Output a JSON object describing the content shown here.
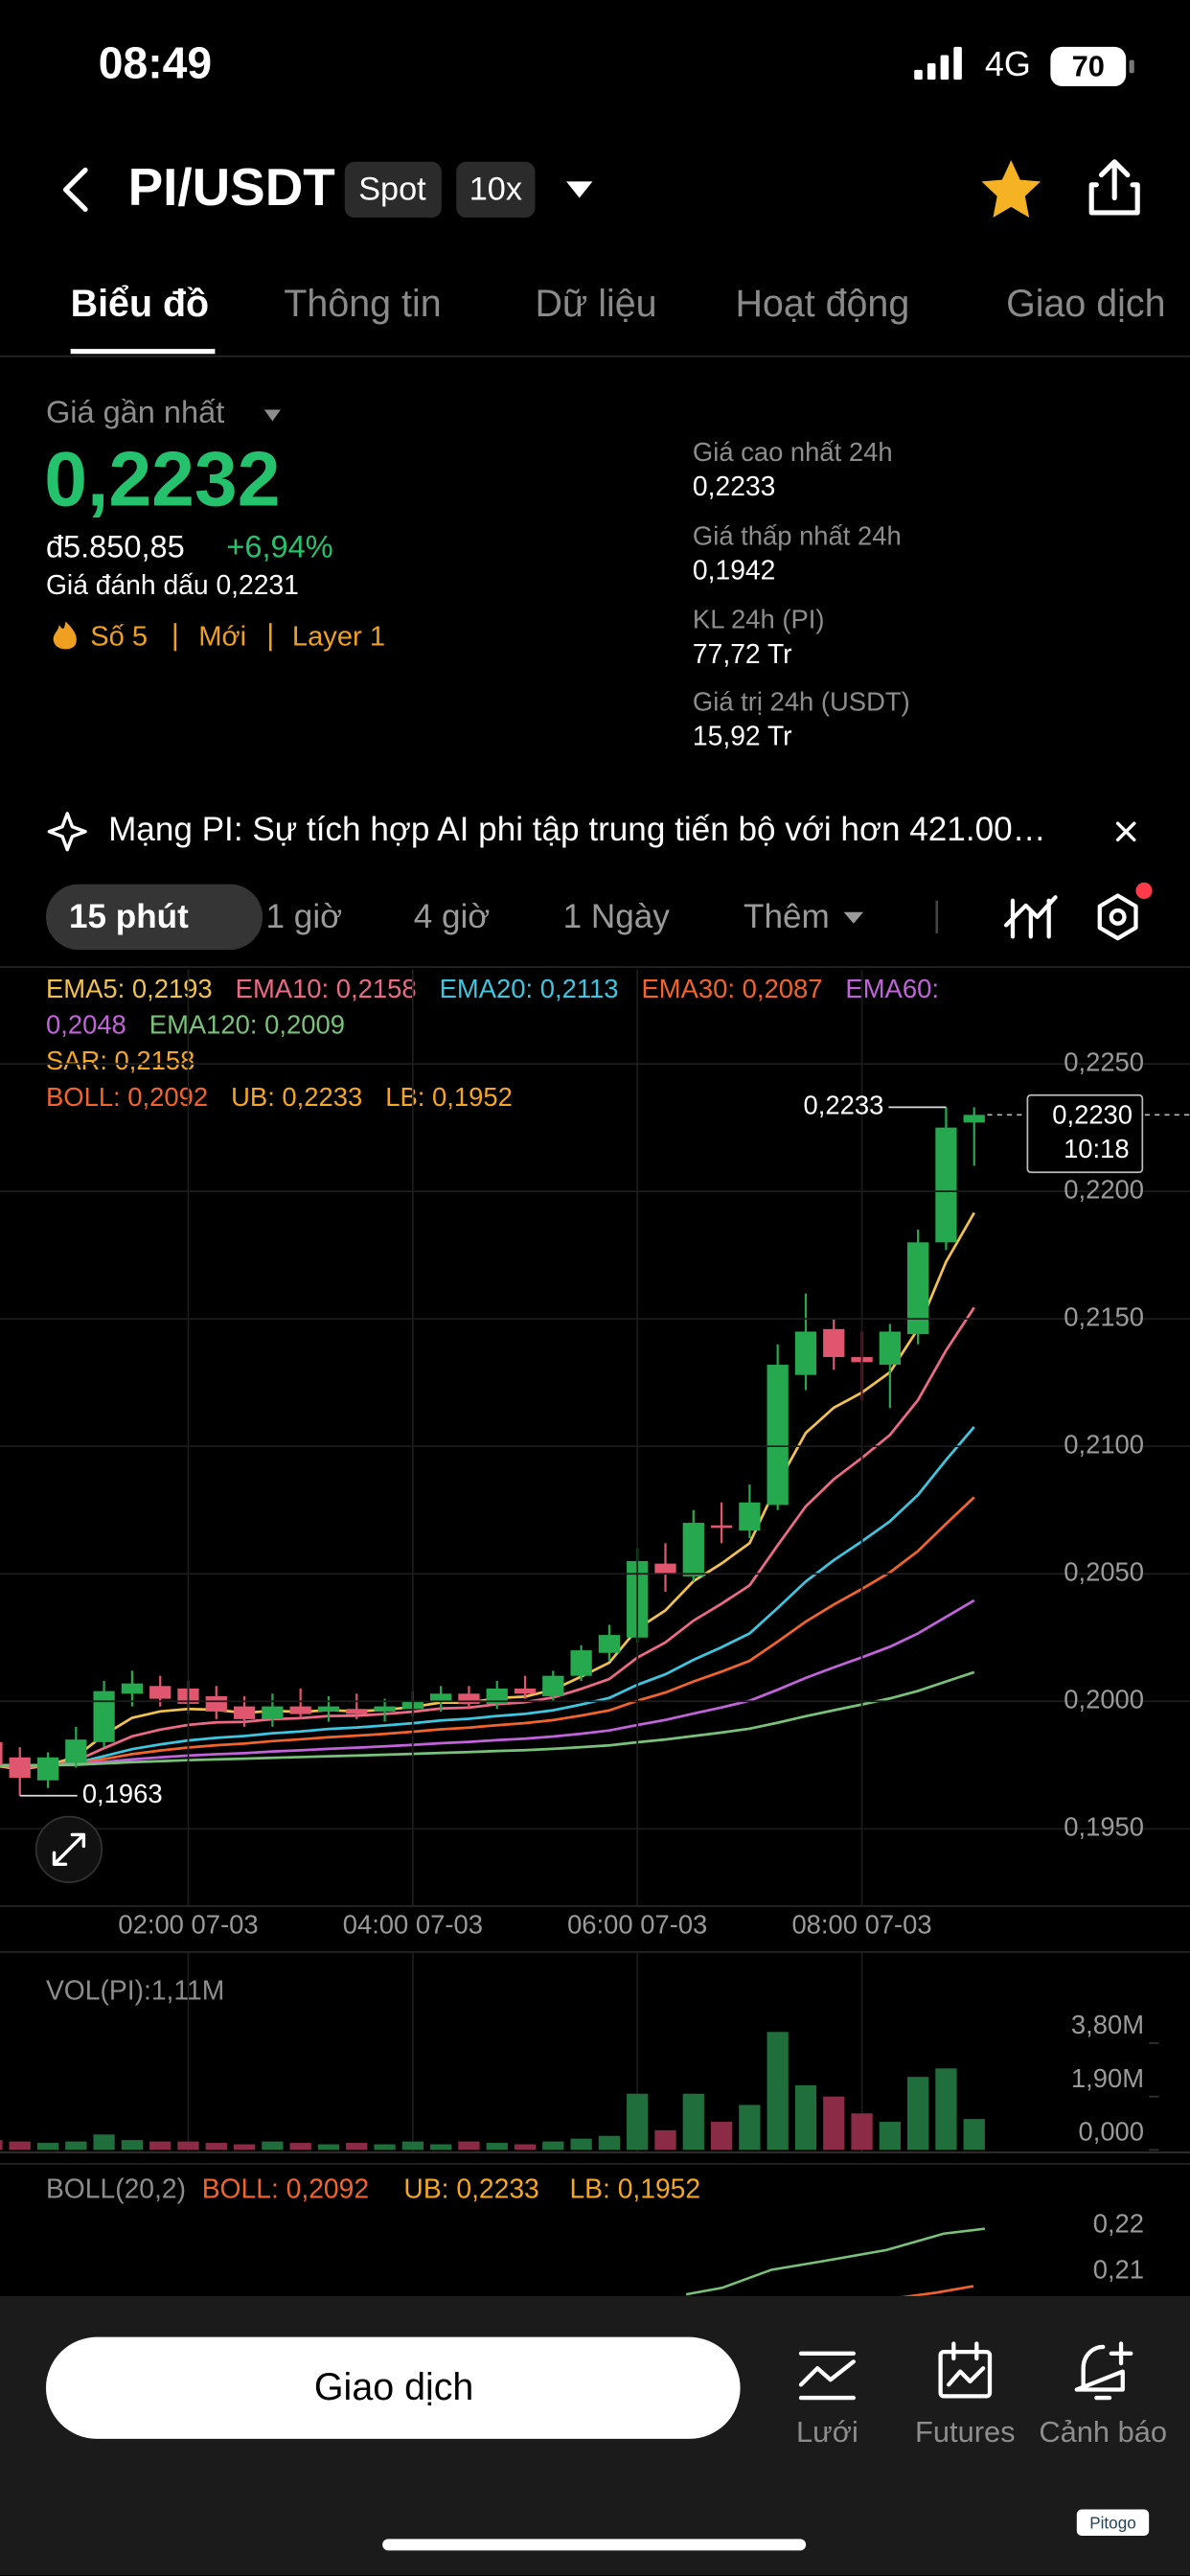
{
  "status_bar": {
    "time": "08:49",
    "network": "4G",
    "battery": "70"
  },
  "header": {
    "pair": "PI/USDT",
    "badges": [
      "Spot",
      "10x"
    ]
  },
  "tabs": [
    "Biểu đồ",
    "Thông tin",
    "Dữ liệu",
    "Hoạt động",
    "Giao dịch"
  ],
  "summary": {
    "label": "Giá gần nhất",
    "price": "0,2232",
    "fiat": "đ5.850,85",
    "change": "+6,94%",
    "mark": "Giá đánh dấu 0,2231",
    "tags": [
      "Số 5",
      "Mới",
      "Layer 1"
    ],
    "stats": [
      {
        "label": "Giá cao nhất 24h",
        "value": "0,2233"
      },
      {
        "label": "Giá thấp nhất 24h",
        "value": "0,1942"
      },
      {
        "label": "KL 24h (PI)",
        "value": "77,72 Tr"
      },
      {
        "label": "Giá trị 24h (USDT)",
        "value": "15,92 Tr"
      }
    ]
  },
  "news": "Mạng PI: Sự tích hợp AI phi tập trung tiến bộ với hơn 421.00…",
  "intervals": [
    "15 phút",
    "1 giờ",
    "4 giờ",
    "1 Ngày",
    "Thêm"
  ],
  "indicator_rows": [
    [
      {
        "text": "EMA5: 0,2193",
        "color": "#f2c14e"
      },
      {
        "text": "EMA10: 0,2158",
        "color": "#ec6a86"
      },
      {
        "text": "EMA20: 0,2113",
        "color": "#3ec6e0"
      },
      {
        "text": "EMA30: 0,2087",
        "color": "#f2642c"
      },
      {
        "text": "EMA60: 0,2048",
        "color": "#c263dc"
      },
      {
        "text": "EMA120: 0,2009",
        "color": "#78c27a"
      }
    ],
    [
      {
        "text": "SAR: 0,2158",
        "color": "#f5a623"
      }
    ],
    [
      {
        "text": "BOLL: 0,2092",
        "color": "#f2642c"
      },
      {
        "text": "UB: 0,2233",
        "color": "#f5a623"
      },
      {
        "text": "LB: 0,1952",
        "color": "#f5a623"
      }
    ]
  ],
  "chart_data": [
    {
      "type": "candlestick",
      "categories": [
        null,
        null,
        null,
        null,
        null,
        null,
        null,
        "02:00 07-03",
        null,
        null,
        null,
        null,
        null,
        null,
        null,
        "04:00 07-03",
        null,
        null,
        null,
        null,
        null,
        null,
        null,
        "06:00 07-03",
        null,
        null,
        null,
        null,
        null,
        null,
        null,
        "08:00 07-03",
        null,
        null,
        null,
        null
      ],
      "open": [
        0.1984,
        0.1978,
        0.1969,
        0.1976,
        0.1984,
        0.2003,
        0.2006,
        0.2005,
        0.2002,
        0.1998,
        0.1993,
        0.1998,
        0.1996,
        0.1997,
        0.1996,
        0.1997,
        0.2,
        0.2003,
        0.1999,
        0.2005,
        0.2002,
        0.201,
        0.2019,
        0.2025,
        0.2054,
        0.2049,
        0.2069,
        0.2067,
        0.2077,
        0.2128,
        0.2146,
        0.2135,
        0.2132,
        0.2144,
        0.218,
        0.2227
      ],
      "high": [
        0.199,
        0.1982,
        0.198,
        0.199,
        0.2008,
        0.2012,
        0.201,
        0.2008,
        0.2006,
        0.2002,
        0.2003,
        0.2005,
        0.2002,
        0.2003,
        0.2001,
        0.2004,
        0.2006,
        0.2006,
        0.2008,
        0.201,
        0.2012,
        0.2022,
        0.203,
        0.206,
        0.2062,
        0.2075,
        0.2078,
        0.2085,
        0.214,
        0.216,
        0.215,
        0.2145,
        0.2148,
        0.2185,
        0.2233,
        0.2233
      ],
      "low": [
        0.1972,
        0.1963,
        0.1966,
        0.1974,
        0.1982,
        0.1998,
        0.1998,
        0.1995,
        0.1993,
        0.199,
        0.199,
        0.1993,
        0.1992,
        0.1993,
        0.1992,
        0.1994,
        0.1996,
        0.1997,
        0.1997,
        0.2001,
        0.2,
        0.2008,
        0.2016,
        0.2023,
        0.2043,
        0.2047,
        0.2062,
        0.2064,
        0.2075,
        0.2122,
        0.213,
        0.2118,
        0.2115,
        0.214,
        0.2177,
        0.221
      ],
      "close": [
        0.1975,
        0.197,
        0.1978,
        0.1985,
        0.2004,
        0.2007,
        0.2001,
        0.1999,
        0.1996,
        0.1993,
        0.1998,
        0.1995,
        0.1998,
        0.1995,
        0.1998,
        0.2,
        0.2003,
        0.1999,
        0.2005,
        0.2003,
        0.201,
        0.202,
        0.2026,
        0.2055,
        0.205,
        0.207,
        0.2068,
        0.2078,
        0.2132,
        0.2145,
        0.2135,
        0.2133,
        0.2145,
        0.218,
        0.2225,
        0.223
      ],
      "up_color": "#26a84f",
      "down_color": "#e0566f",
      "ylim": [
        0.192,
        0.2287
      ],
      "yticks": [
        {
          "value": 0.195,
          "label": "0,1950"
        },
        {
          "value": 0.2,
          "label": "0,2000"
        },
        {
          "value": 0.205,
          "label": "0,2050"
        },
        {
          "value": 0.21,
          "label": "0,2100"
        },
        {
          "value": 0.215,
          "label": "0,2150"
        },
        {
          "value": 0.22,
          "label": "0,2200"
        },
        {
          "value": 0.225,
          "label": "0,2250"
        }
      ],
      "high_label": "0,2233",
      "low_label": "0,1963",
      "last_price": {
        "value": 0.223,
        "label": "0,2230"
      },
      "countdown": "10:18"
    },
    {
      "type": "bar",
      "title": "VOL(PI):1,11M",
      "values": [
        0.35,
        0.3,
        0.25,
        0.3,
        0.55,
        0.35,
        0.3,
        0.3,
        0.25,
        0.2,
        0.3,
        0.25,
        0.2,
        0.25,
        0.2,
        0.3,
        0.2,
        0.3,
        0.25,
        0.2,
        0.3,
        0.4,
        0.5,
        2.0,
        0.7,
        2.0,
        1.0,
        1.6,
        4.2,
        2.3,
        1.9,
        1.3,
        1.0,
        2.6,
        2.9,
        1.1
      ],
      "up_color": "#1f6e3b",
      "down_color": "#8c2b45",
      "ylim": [
        0,
        4.5
      ],
      "yticks": [
        {
          "value": 0,
          "label": "0,000"
        },
        {
          "value": 1.9,
          "label": "1,90M"
        },
        {
          "value": 3.8,
          "label": "3,80M"
        }
      ]
    }
  ],
  "boll_panel": {
    "title": "BOLL(20,2)",
    "items": [
      "BOLL: 0,2092",
      "UB: 0,2233",
      "LB: 0,1952"
    ],
    "tick_labels": [
      "0,22",
      "0,21"
    ]
  },
  "bottom_bar": {
    "button": "Giao dịch",
    "items": [
      "Lưới",
      "Futures",
      "Cảnh báo"
    ],
    "watermark": "Pitogo"
  }
}
